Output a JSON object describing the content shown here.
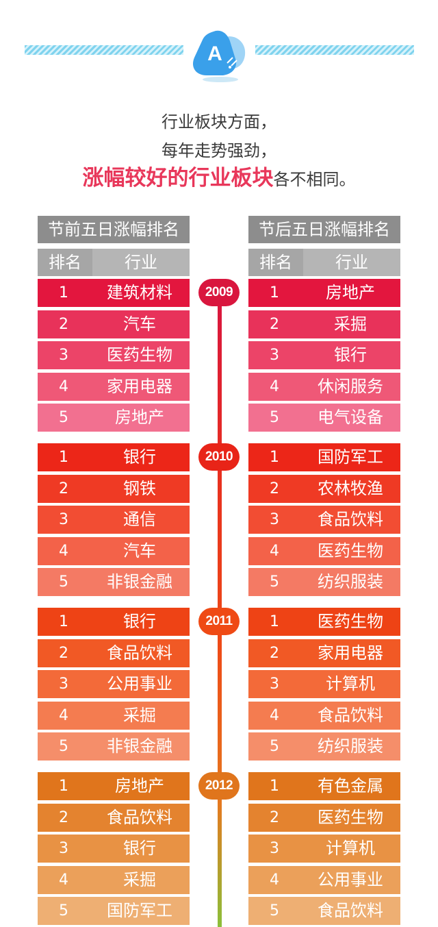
{
  "header": {
    "badge_letter": "A",
    "line1": "行业板块方面，",
    "line2": "每年走势强劲，",
    "line3_highlight": "涨幅较好的行业板块",
    "line3_rest": "各不相同。"
  },
  "tables": {
    "left_title": "节前五日涨幅排名",
    "right_title": "节后五日涨幅排名",
    "col_rank": "排名",
    "col_industry": "行业"
  },
  "years": [
    {
      "year": "2009",
      "before": [
        {
          "rank": "1",
          "industry": "建筑材料"
        },
        {
          "rank": "2",
          "industry": "汽车"
        },
        {
          "rank": "3",
          "industry": "医药生物"
        },
        {
          "rank": "4",
          "industry": "家用电器"
        },
        {
          "rank": "5",
          "industry": "房地产"
        }
      ],
      "after": [
        {
          "rank": "1",
          "industry": "房地产"
        },
        {
          "rank": "2",
          "industry": "采掘"
        },
        {
          "rank": "3",
          "industry": "银行"
        },
        {
          "rank": "4",
          "industry": "休闲服务"
        },
        {
          "rank": "5",
          "industry": "电气设备"
        }
      ]
    },
    {
      "year": "2010",
      "before": [
        {
          "rank": "1",
          "industry": "银行"
        },
        {
          "rank": "2",
          "industry": "钢铁"
        },
        {
          "rank": "3",
          "industry": "通信"
        },
        {
          "rank": "4",
          "industry": "汽车"
        },
        {
          "rank": "5",
          "industry": "非银金融"
        }
      ],
      "after": [
        {
          "rank": "1",
          "industry": "国防军工"
        },
        {
          "rank": "2",
          "industry": "农林牧渔"
        },
        {
          "rank": "3",
          "industry": "食品饮料"
        },
        {
          "rank": "4",
          "industry": "医药生物"
        },
        {
          "rank": "5",
          "industry": "纺织服装"
        }
      ]
    },
    {
      "year": "2011",
      "before": [
        {
          "rank": "1",
          "industry": "银行"
        },
        {
          "rank": "2",
          "industry": "食品饮料"
        },
        {
          "rank": "3",
          "industry": "公用事业"
        },
        {
          "rank": "4",
          "industry": "采掘"
        },
        {
          "rank": "5",
          "industry": "非银金融"
        }
      ],
      "after": [
        {
          "rank": "1",
          "industry": "医药生物"
        },
        {
          "rank": "2",
          "industry": "家用电器"
        },
        {
          "rank": "3",
          "industry": "计算机"
        },
        {
          "rank": "4",
          "industry": "食品饮料"
        },
        {
          "rank": "5",
          "industry": "纺织服装"
        }
      ]
    },
    {
      "year": "2012",
      "before": [
        {
          "rank": "1",
          "industry": "房地产"
        },
        {
          "rank": "2",
          "industry": "食品饮料"
        },
        {
          "rank": "3",
          "industry": "银行"
        },
        {
          "rank": "4",
          "industry": "采掘"
        },
        {
          "rank": "5",
          "industry": "国防军工"
        }
      ],
      "after": [
        {
          "rank": "1",
          "industry": "有色金属"
        },
        {
          "rank": "2",
          "industry": "医药生物"
        },
        {
          "rank": "3",
          "industry": "计算机"
        },
        {
          "rank": "4",
          "industry": "公用事业"
        },
        {
          "rank": "5",
          "industry": "食品饮料"
        }
      ]
    }
  ],
  "colors": {
    "highlight_text": "#e8375a",
    "header_dark": "#8d8d8d",
    "header_light": "#b5b5b5",
    "badge_blue": "#3aa0ea",
    "year_palettes": [
      [
        "#e3163e",
        "#e8325a",
        "#ec4468",
        "#ef5877",
        "#f27090"
      ],
      [
        "#ec2618",
        "#ef3a24",
        "#f24d33",
        "#f36249",
        "#f47a64"
      ],
      [
        "#ee4315",
        "#f15925",
        "#f36a39",
        "#f47c50",
        "#f58e6a"
      ],
      [
        "#e0751c",
        "#e4832f",
        "#e89244",
        "#eba05a",
        "#eeaf73"
      ]
    ],
    "year_badges": [
      "#d9163e",
      "#e82418",
      "#ef4a15",
      "#e0751c"
    ]
  }
}
